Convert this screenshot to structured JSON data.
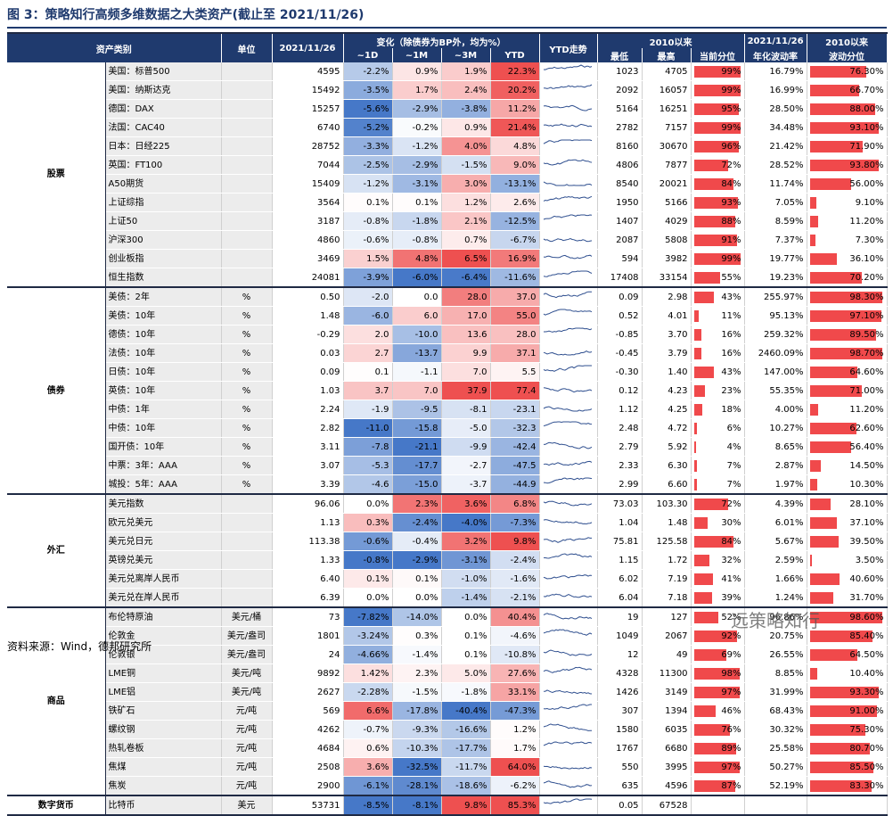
{
  "title": "图 3：策略知行高频多维数据之大类资产(截止至 2021/11/26)",
  "header": {
    "category": "资产类别",
    "unit": "单位",
    "date": "2021/11/26",
    "change": "变化（除债券为BP外，均为%）",
    "change_sub": [
      "~1D",
      "~1M",
      "~3M",
      "YTD"
    ],
    "ytd": "YTD走势",
    "since": "2010以来",
    "since_sub": [
      "最低",
      "最高",
      "当前分位"
    ],
    "vol": [
      "2021/11/26",
      "年化波动率"
    ],
    "volpct": [
      "2010以来",
      "波动分位"
    ]
  },
  "groups": [
    {
      "name": "股票",
      "rows": [
        {
          "name": "美国：标普500",
          "values": [
            "4595",
            "-2.2%",
            "0.9%",
            "1.9%",
            "22.3%",
            "1023",
            "4705",
            "99%",
            "16.79%",
            "76.30%"
          ]
        },
        {
          "name": "美国：纳斯达克",
          "values": [
            "15492",
            "-3.5%",
            "1.7%",
            "2.4%",
            "20.2%",
            "2092",
            "16057",
            "99%",
            "16.99%",
            "66.70%"
          ]
        },
        {
          "name": "德国：DAX",
          "values": [
            "15257",
            "-5.6%",
            "-2.9%",
            "-3.8%",
            "11.2%",
            "5164",
            "16251",
            "95%",
            "28.50%",
            "88.00%"
          ]
        },
        {
          "name": "法国：CAC40",
          "values": [
            "6740",
            "-5.2%",
            "-0.2%",
            "0.9%",
            "21.4%",
            "2782",
            "7157",
            "99%",
            "34.48%",
            "93.10%"
          ]
        },
        {
          "name": "日本：日经225",
          "values": [
            "28752",
            "-3.3%",
            "-1.2%",
            "4.0%",
            "4.8%",
            "8160",
            "30670",
            "96%",
            "21.42%",
            "71.90%"
          ]
        },
        {
          "name": "英国：FT100",
          "values": [
            "7044",
            "-2.5%",
            "-2.9%",
            "-1.5%",
            "9.0%",
            "4806",
            "7877",
            "72%",
            "28.52%",
            "93.80%"
          ]
        },
        {
          "name": "A50期货",
          "values": [
            "15409",
            "-1.2%",
            "-3.1%",
            "3.0%",
            "-13.1%",
            "8540",
            "20021",
            "84%",
            "11.74%",
            "56.00%"
          ]
        },
        {
          "name": "上证综指",
          "values": [
            "3564",
            "0.1%",
            "0.1%",
            "1.2%",
            "2.6%",
            "1950",
            "5166",
            "93%",
            "7.05%",
            "9.10%"
          ]
        },
        {
          "name": "上证50",
          "values": [
            "3187",
            "-0.8%",
            "-1.8%",
            "2.1%",
            "-12.5%",
            "1407",
            "4029",
            "88%",
            "8.59%",
            "11.20%"
          ]
        },
        {
          "name": "沪深300",
          "values": [
            "4860",
            "-0.6%",
            "-0.8%",
            "0.7%",
            "-6.7%",
            "2087",
            "5808",
            "91%",
            "7.37%",
            "7.30%"
          ]
        },
        {
          "name": "创业板指",
          "values": [
            "3469",
            "1.5%",
            "4.8%",
            "6.5%",
            "16.9%",
            "594",
            "3982",
            "99%",
            "19.77%",
            "36.10%"
          ]
        },
        {
          "name": "恒生指数",
          "values": [
            "24081",
            "-3.9%",
            "-6.0%",
            "-6.4%",
            "-11.6%",
            "17408",
            "33154",
            "55%",
            "19.23%",
            "70.20%"
          ]
        }
      ]
    },
    {
      "name": "债券",
      "rows": [
        {
          "name": "美债：2年",
          "unit": "%",
          "values": [
            "0.50",
            "-2.0",
            "0.0",
            "28.0",
            "37.0",
            "0.09",
            "2.98",
            "43%",
            "255.97%",
            "98.30%"
          ]
        },
        {
          "name": "美债：10年",
          "unit": "%",
          "values": [
            "1.48",
            "-6.0",
            "6.0",
            "17.0",
            "55.0",
            "0.52",
            "4.01",
            "11%",
            "95.13%",
            "97.10%"
          ]
        },
        {
          "name": "德债：10年",
          "unit": "%",
          "values": [
            "-0.29",
            "2.0",
            "-10.0",
            "13.6",
            "28.0",
            "-0.85",
            "3.70",
            "16%",
            "259.32%",
            "89.50%"
          ]
        },
        {
          "name": "法债：10年",
          "unit": "%",
          "values": [
            "0.03",
            "2.7",
            "-13.7",
            "9.9",
            "37.1",
            "-0.45",
            "3.79",
            "16%",
            "2460.09%",
            "98.70%"
          ]
        },
        {
          "name": "日债：10年",
          "unit": "%",
          "values": [
            "0.09",
            "0.1",
            "-1.1",
            "7.0",
            "5.5",
            "-0.30",
            "1.40",
            "43%",
            "147.00%",
            "64.60%"
          ]
        },
        {
          "name": "英债：10年",
          "unit": "%",
          "values": [
            "1.03",
            "3.7",
            "7.0",
            "37.9",
            "77.4",
            "0.12",
            "4.23",
            "23%",
            "55.35%",
            "71.00%"
          ]
        },
        {
          "name": "中债：1年",
          "unit": "%",
          "values": [
            "2.24",
            "-1.9",
            "-9.5",
            "-8.1",
            "-23.1",
            "1.12",
            "4.25",
            "18%",
            "4.00%",
            "11.20%"
          ]
        },
        {
          "name": "中债：10年",
          "unit": "%",
          "values": [
            "2.82",
            "-11.0",
            "-15.8",
            "-5.0",
            "-32.3",
            "2.48",
            "4.72",
            "6%",
            "10.27%",
            "62.60%"
          ]
        },
        {
          "name": "国开债：10年",
          "unit": "%",
          "values": [
            "3.11",
            "-7.8",
            "-21.1",
            "-9.9",
            "-42.4",
            "2.79",
            "5.92",
            "4%",
            "8.65%",
            "56.40%"
          ]
        },
        {
          "name": "中票：3年：AAA",
          "unit": "%",
          "values": [
            "3.07",
            "-5.3",
            "-17.7",
            "-2.7",
            "-47.5",
            "2.33",
            "6.30",
            "7%",
            "2.87%",
            "14.50%"
          ]
        },
        {
          "name": "城投：5年：AAA",
          "unit": "%",
          "values": [
            "3.39",
            "-4.6",
            "-15.0",
            "-3.7",
            "-44.9",
            "2.99",
            "6.60",
            "7%",
            "1.97%",
            "10.30%"
          ]
        }
      ]
    },
    {
      "name": "外汇",
      "rows": [
        {
          "name": "美元指数",
          "values": [
            "96.06",
            "0.0%",
            "2.3%",
            "3.6%",
            "6.8%",
            "73.03",
            "103.30",
            "72%",
            "4.39%",
            "28.10%"
          ]
        },
        {
          "name": "欧元兑美元",
          "values": [
            "1.13",
            "0.3%",
            "-2.4%",
            "-4.0%",
            "-7.3%",
            "1.04",
            "1.48",
            "30%",
            "6.01%",
            "37.10%"
          ]
        },
        {
          "name": "美元兑日元",
          "values": [
            "113.38",
            "-0.6%",
            "-0.4%",
            "3.2%",
            "9.8%",
            "75.81",
            "125.58",
            "84%",
            "5.67%",
            "39.50%"
          ]
        },
        {
          "name": "英镑兑美元",
          "values": [
            "1.33",
            "-0.8%",
            "-2.9%",
            "-3.1%",
            "-2.4%",
            "1.15",
            "1.72",
            "32%",
            "2.59%",
            "3.50%"
          ]
        },
        {
          "name": "美元兑离岸人民币",
          "values": [
            "6.40",
            "0.1%",
            "0.1%",
            "-1.0%",
            "-1.6%",
            "6.02",
            "7.19",
            "41%",
            "1.66%",
            "40.60%"
          ]
        },
        {
          "name": "美元兑在岸人民币",
          "values": [
            "6.39",
            "0.0%",
            "0.0%",
            "-1.4%",
            "-2.1%",
            "6.04",
            "7.18",
            "39%",
            "1.24%",
            "31.70%"
          ]
        }
      ]
    },
    {
      "name": "商品",
      "rows": [
        {
          "name": "布伦特原油",
          "unit": "美元/桶",
          "values": [
            "73",
            "-7.82%",
            "-14.0%",
            "0.0%",
            "40.4%",
            "19",
            "127",
            "52%",
            "96.86%",
            "98.60%"
          ]
        },
        {
          "name": "伦敦金",
          "unit": "美元/盎司",
          "values": [
            "1801",
            "-3.24%",
            "0.3%",
            "0.1%",
            "-4.6%",
            "1049",
            "2067",
            "92%",
            "20.75%",
            "85.40%"
          ]
        },
        {
          "name": "伦敦银",
          "unit": "美元/盎司",
          "values": [
            "24",
            "-4.66%",
            "-1.4%",
            "0.1%",
            "-10.8%",
            "12",
            "49",
            "69%",
            "26.55%",
            "64.50%"
          ]
        },
        {
          "name": "LME铜",
          "unit": "美元/吨",
          "values": [
            "9892",
            "1.42%",
            "2.3%",
            "5.0%",
            "27.6%",
            "4328",
            "11300",
            "98%",
            "8.85%",
            "10.40%"
          ]
        },
        {
          "name": "LME铝",
          "unit": "美元/吨",
          "values": [
            "2627",
            "-2.28%",
            "-1.5%",
            "-1.8%",
            "33.1%",
            "1426",
            "3149",
            "97%",
            "31.99%",
            "93.30%"
          ]
        },
        {
          "name": "铁矿石",
          "unit": "元/吨",
          "values": [
            "569",
            "6.6%",
            "-17.8%",
            "-40.4%",
            "-47.3%",
            "307",
            "1394",
            "46%",
            "68.43%",
            "91.00%"
          ]
        },
        {
          "name": "螺纹钢",
          "unit": "元/吨",
          "values": [
            "4262",
            "-0.7%",
            "-9.3%",
            "-16.6%",
            "1.2%",
            "1580",
            "6035",
            "76%",
            "30.32%",
            "75.30%"
          ]
        },
        {
          "name": "热轧卷板",
          "unit": "元/吨",
          "values": [
            "4684",
            "0.6%",
            "-10.3%",
            "-17.7%",
            "1.7%",
            "1767",
            "6680",
            "89%",
            "25.58%",
            "80.70%"
          ]
        },
        {
          "name": "焦煤",
          "unit": "元/吨",
          "values": [
            "2508",
            "3.6%",
            "-32.5%",
            "-11.7%",
            "64.0%",
            "550",
            "3995",
            "97%",
            "50.27%",
            "85.50%"
          ]
        },
        {
          "name": "焦炭",
          "unit": "元/吨",
          "values": [
            "2900",
            "-6.1%",
            "-28.1%",
            "-18.6%",
            "-6.2%",
            "635",
            "4596",
            "87%",
            "52.19%",
            "83.30%"
          ]
        }
      ]
    },
    {
      "name": "数字货币",
      "rows": [
        {
          "name": "比特币",
          "unit": "美元",
          "values": [
            "53731",
            "-8.5%",
            "-8.1%",
            "9.8%",
            "85.3%",
            "0.05",
            "67528"
          ]
        }
      ]
    }
  ],
  "source": "资料来源：Wind，德邦研究所",
  "watermark": "远策略知行"
}
